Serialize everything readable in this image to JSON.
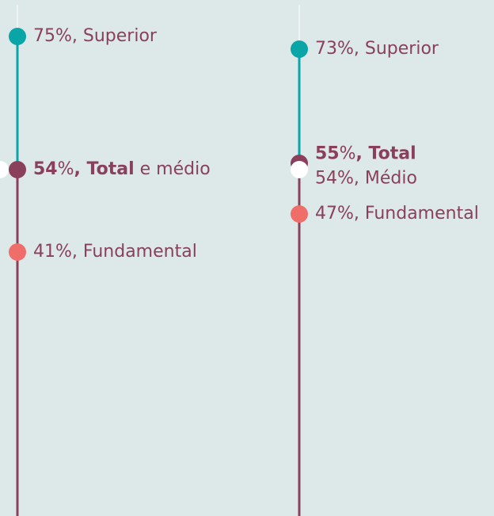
{
  "chart_data": {
    "type": "dotplot",
    "ylim": [
      0,
      80
    ],
    "columns": [
      {
        "points": [
          {
            "value": 75,
            "color": "#0aa5a7",
            "label": [
              {
                "text": "75%"
              },
              {
                "text": ", Superior"
              }
            ]
          },
          {
            "value": 54,
            "color": "#8a3f5a",
            "label": [
              {
                "text": "54",
                "bold": true
              },
              {
                "text": "%"
              },
              {
                "text": ", Total",
                "bold": true
              },
              {
                "text": " e médio"
              }
            ]
          },
          {
            "value": 54,
            "color": "#ffffff"
          },
          {
            "value": 41,
            "color": "#ef6e6a",
            "label": [
              {
                "text": "41%"
              },
              {
                "text": ", Fundamental"
              }
            ]
          }
        ]
      },
      {
        "points": [
          {
            "value": 73,
            "color": "#0aa5a7",
            "label": [
              {
                "text": "73%"
              },
              {
                "text": ", Superior"
              }
            ]
          },
          {
            "value": 55,
            "color": "#8a3f5a",
            "label": [
              {
                "text": "55",
                "bold": true
              },
              {
                "text": "%"
              },
              {
                "text": ", Total",
                "bold": true
              }
            ]
          },
          {
            "value": 54,
            "color": "#ffffff",
            "label": [
              {
                "text": "54%"
              },
              {
                "text": ", Médio"
              }
            ]
          },
          {
            "value": 47,
            "color": "#ef6e6a",
            "label": [
              {
                "text": "47%"
              },
              {
                "text": ", Fundamental"
              }
            ]
          }
        ]
      }
    ]
  }
}
